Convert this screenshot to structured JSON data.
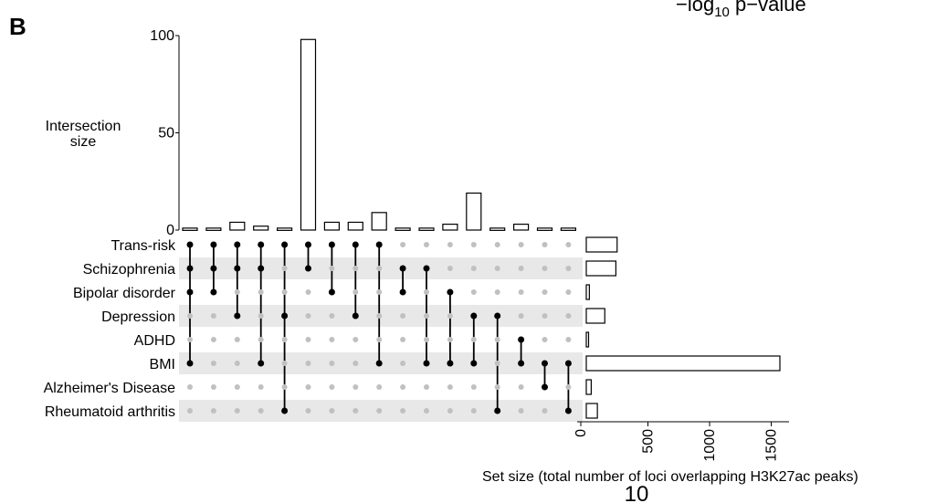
{
  "panel_letter": "B",
  "corner_label": "−log10 p−value",
  "page_number": "10",
  "chart_data": {
    "type": "upset",
    "sets": [
      "Trans-risk",
      "Schizophrenia",
      "Bipolar disorder",
      "Depression",
      "ADHD",
      "BMI",
      "Alzheimer's Disease",
      "Rheumatoid arthritis"
    ],
    "set_sizes": [
      250,
      240,
      25,
      150,
      15,
      1570,
      40,
      90
    ],
    "intersections": [
      {
        "sets": [
          "Trans-risk",
          "Schizophrenia",
          "Bipolar disorder",
          "BMI"
        ],
        "size": 1
      },
      {
        "sets": [
          "Trans-risk",
          "Schizophrenia",
          "Bipolar disorder"
        ],
        "size": 1
      },
      {
        "sets": [
          "Trans-risk",
          "Schizophrenia",
          "Depression"
        ],
        "size": 4
      },
      {
        "sets": [
          "Trans-risk",
          "Schizophrenia",
          "BMI"
        ],
        "size": 2
      },
      {
        "sets": [
          "Trans-risk",
          "Depression",
          "Rheumatoid arthritis"
        ],
        "size": 1
      },
      {
        "sets": [
          "Trans-risk",
          "Schizophrenia"
        ],
        "size": 98
      },
      {
        "sets": [
          "Trans-risk",
          "Bipolar disorder"
        ],
        "size": 4
      },
      {
        "sets": [
          "Trans-risk",
          "Depression"
        ],
        "size": 4
      },
      {
        "sets": [
          "Trans-risk",
          "BMI"
        ],
        "size": 9
      },
      {
        "sets": [
          "Schizophrenia",
          "Bipolar disorder"
        ],
        "size": 1
      },
      {
        "sets": [
          "Schizophrenia",
          "BMI"
        ],
        "size": 1
      },
      {
        "sets": [
          "Bipolar disorder",
          "BMI"
        ],
        "size": 3
      },
      {
        "sets": [
          "Depression",
          "BMI"
        ],
        "size": 19
      },
      {
        "sets": [
          "Depression",
          "Rheumatoid arthritis"
        ],
        "size": 1
      },
      {
        "sets": [
          "ADHD",
          "BMI"
        ],
        "size": 3
      },
      {
        "sets": [
          "BMI",
          "Alzheimer's Disease"
        ],
        "size": 1
      },
      {
        "sets": [
          "BMI",
          "Rheumatoid arthritis"
        ],
        "size": 1
      }
    ],
    "intersection_axis": {
      "label": "Intersection size",
      "ticks": [
        0,
        50,
        100
      ],
      "range": [
        0,
        100
      ]
    },
    "set_size_axis": {
      "label": "Set size (total number of loci overlapping H3K27ac peaks)",
      "ticks": [
        0,
        500,
        1000,
        1500
      ],
      "range": [
        0,
        1600
      ]
    },
    "colors": {
      "bar_fill": "#ffffff",
      "bar_stroke": "#000000",
      "dot_active": "#000000",
      "dot_inactive": "#c0c0c0",
      "stripe": "#e8e8e8"
    }
  }
}
